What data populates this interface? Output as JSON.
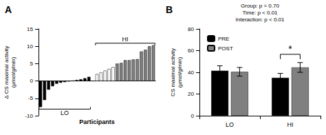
{
  "chart_data": [
    {
      "type": "bar",
      "title": "A",
      "xlabel": "Participants",
      "ylabel": "Δ CS maximal activity\n(μmol/g/min)",
      "categories": [
        null,
        null,
        null,
        null,
        null,
        null,
        null,
        null,
        null,
        null,
        null,
        null,
        null,
        null,
        null,
        null,
        null,
        null,
        null,
        null,
        null,
        null,
        null,
        null,
        null,
        null,
        null,
        null,
        null
      ],
      "series": [
        {
          "name": "LO",
          "color": "#000000",
          "values": [
            -7.5,
            -5.5,
            -2.5,
            -1.5,
            -0.8,
            -0.5,
            -0.3,
            -0.1,
            0.1,
            0.3,
            0.5,
            0.8,
            1.2,
            null,
            null,
            null,
            null,
            null,
            null,
            null,
            null,
            null,
            null,
            null,
            null,
            null,
            null,
            null,
            null
          ]
        },
        {
          "name": "HI",
          "colors": [
            null,
            null,
            null,
            null,
            null,
            null,
            null,
            null,
            null,
            null,
            null,
            null,
            null,
            null,
            "#ffffff",
            "#ffffff",
            "#ffffff",
            "#ffffff",
            "#ffffff",
            "#808080",
            "#808080",
            "#808080",
            "#808080",
            "#808080",
            "#808080",
            "#808080",
            "#808080",
            "#808080",
            "#808080"
          ],
          "values": [
            null,
            null,
            null,
            null,
            null,
            null,
            null,
            null,
            null,
            null,
            null,
            null,
            null,
            null,
            2.0,
            2.5,
            3.0,
            3.5,
            4.0,
            5.0,
            5.2,
            6.0,
            6.0,
            6.2,
            6.3,
            8.5,
            9.0,
            10.0,
            10.3
          ]
        }
      ],
      "ylim": [
        -10,
        15
      ],
      "yticks": [
        -10,
        -5,
        0,
        5,
        10,
        15
      ],
      "grid": false,
      "tick_labels": "y"
    },
    {
      "type": "bar",
      "title": "B",
      "ylabel": "CS maximal activity\n(μmol/g/min)",
      "categories": [
        "LO",
        "HI"
      ],
      "series": [
        {
          "name": "PRE",
          "color": "#000000",
          "values": [
            41.5,
            35.0
          ],
          "errors": [
            4.5,
            4.0
          ]
        },
        {
          "name": "POST",
          "color": "#808080",
          "values": [
            40.5,
            44.5
          ],
          "errors": [
            4.0,
            4.5
          ]
        }
      ],
      "ylim": [
        0,
        80
      ],
      "yticks": [
        0,
        20,
        40,
        60,
        80
      ],
      "grid": false,
      "legend": "upper left",
      "annotations": [
        {
          "text": "Group: p = 0.70\nTime: p < 0.01\nInteraction: p < 0.01"
        },
        {
          "text": "*",
          "category": "HI"
        }
      ]
    }
  ]
}
